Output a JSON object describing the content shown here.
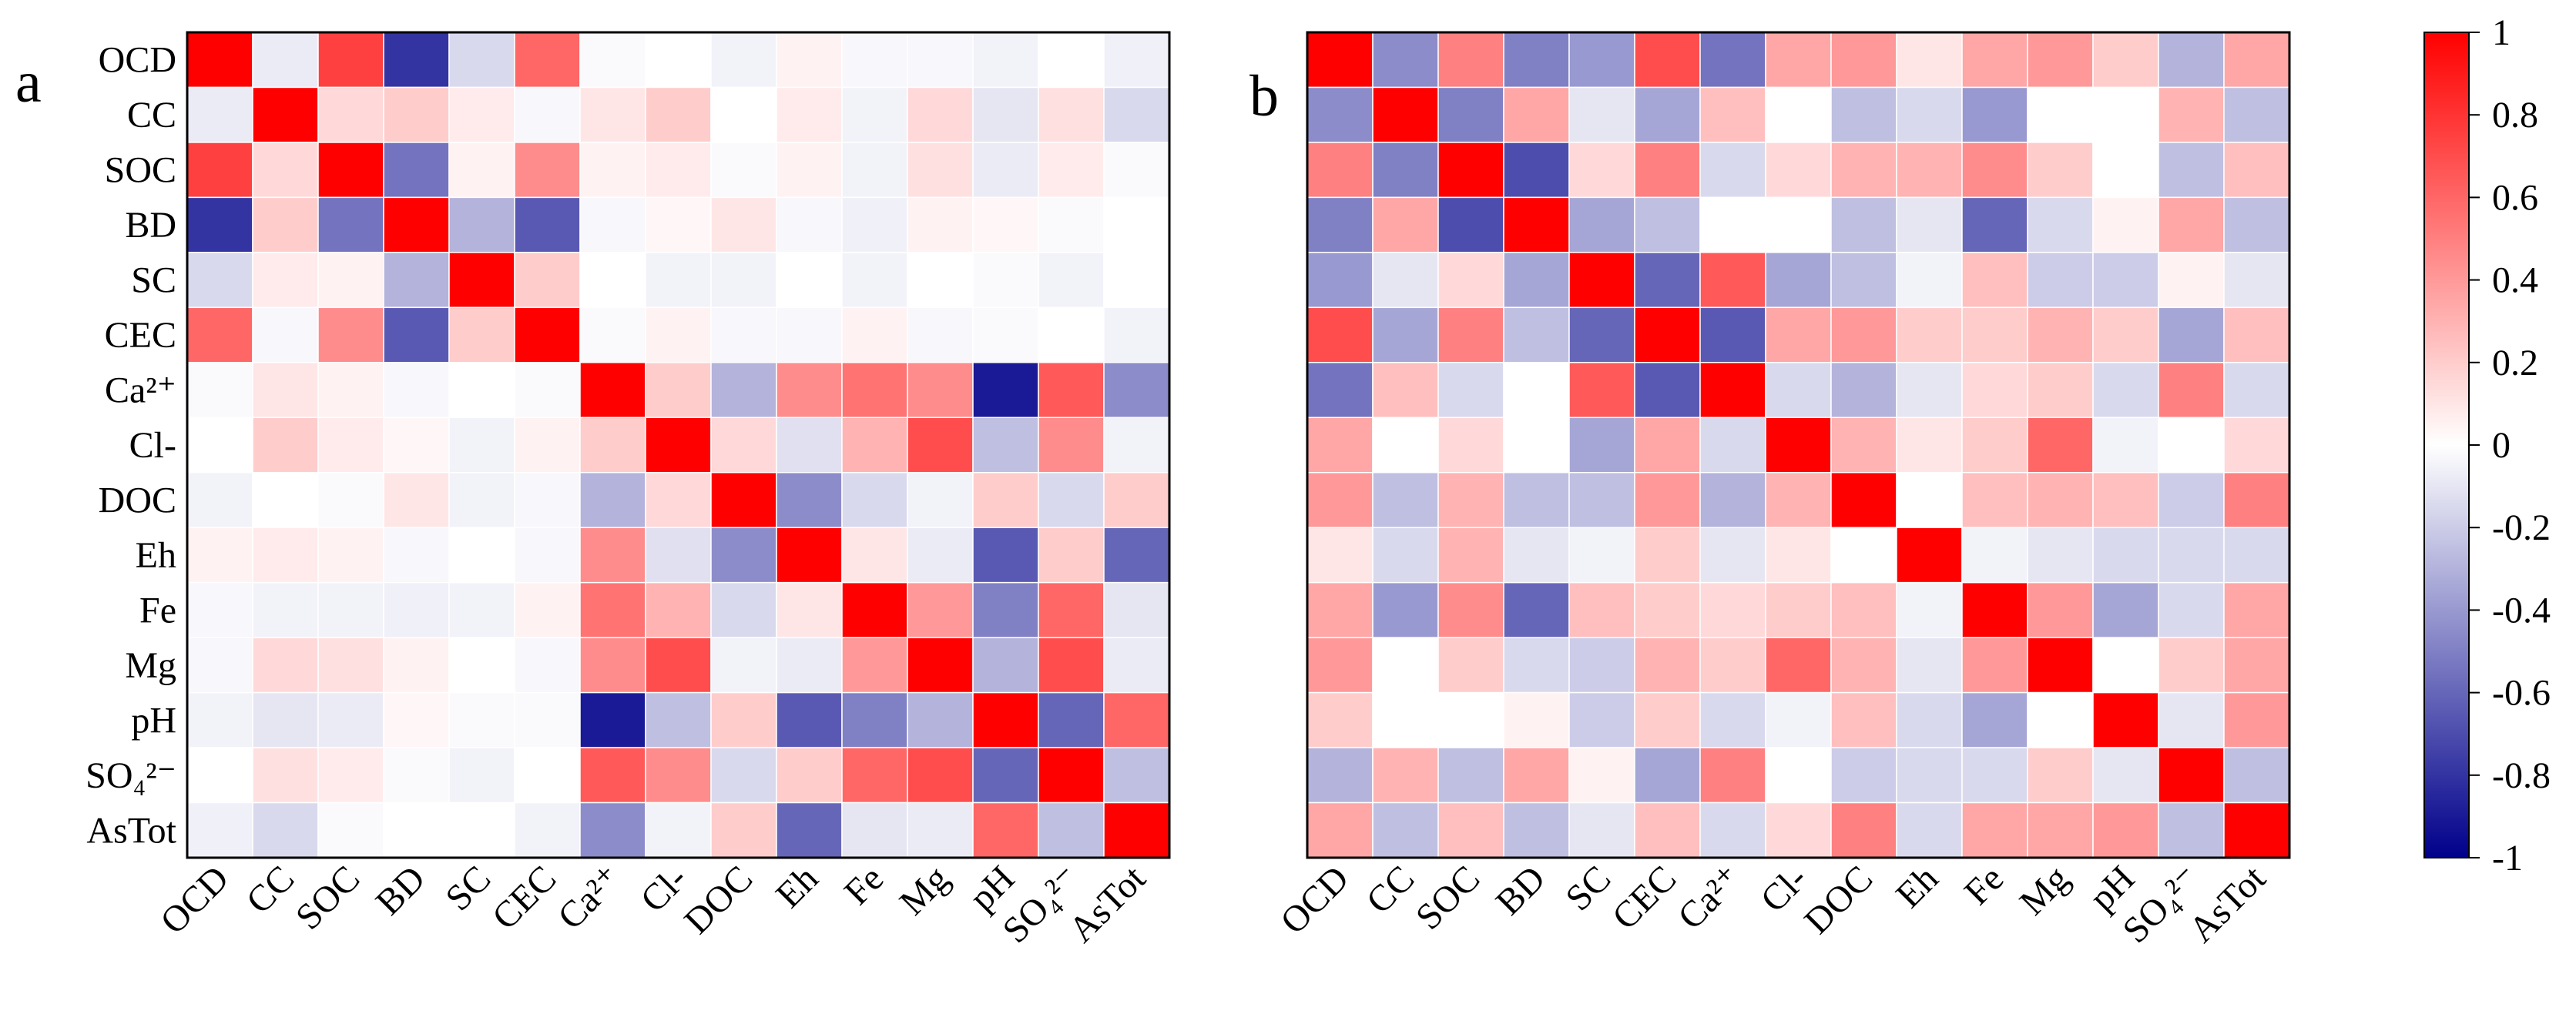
{
  "chart_data": [
    {
      "type": "heatmap",
      "panel_label": "a",
      "variables": [
        "OCD",
        "CC",
        "SOC",
        "BD",
        "SC",
        "CEC",
        "Ca²⁺",
        "Cl-",
        "DOC",
        "Eh",
        "Fe",
        "Mg",
        "pH",
        "SO₄²⁻",
        "AsTot"
      ],
      "matrix": [
        [
          1.0,
          -0.08,
          0.75,
          -0.8,
          -0.15,
          0.6,
          -0.02,
          0.0,
          -0.05,
          0.05,
          -0.03,
          -0.03,
          -0.05,
          0.0,
          -0.06
        ],
        [
          -0.08,
          1.0,
          0.15,
          0.2,
          0.08,
          -0.03,
          0.1,
          0.2,
          0.0,
          0.08,
          -0.05,
          0.15,
          -0.1,
          0.12,
          -0.15
        ],
        [
          0.75,
          0.15,
          1.0,
          -0.55,
          0.05,
          0.45,
          0.05,
          0.08,
          -0.02,
          0.05,
          -0.05,
          0.12,
          -0.08,
          0.08,
          -0.02
        ],
        [
          -0.8,
          0.2,
          -0.55,
          1.0,
          -0.3,
          -0.65,
          -0.03,
          0.03,
          0.1,
          -0.03,
          -0.06,
          0.05,
          0.03,
          -0.02,
          0.0
        ],
        [
          -0.15,
          0.08,
          0.05,
          -0.3,
          1.0,
          0.2,
          0.0,
          -0.05,
          -0.05,
          0.0,
          -0.05,
          0.0,
          -0.02,
          -0.05,
          0.0
        ],
        [
          0.6,
          -0.03,
          0.45,
          -0.65,
          0.2,
          1.0,
          -0.02,
          0.05,
          -0.03,
          -0.03,
          0.05,
          -0.03,
          -0.02,
          0.0,
          -0.05
        ],
        [
          -0.02,
          0.1,
          0.05,
          -0.03,
          0.0,
          -0.02,
          1.0,
          0.2,
          -0.3,
          0.45,
          0.55,
          0.45,
          -0.9,
          0.65,
          -0.45
        ],
        [
          0.0,
          0.2,
          0.08,
          0.03,
          -0.05,
          0.05,
          0.2,
          1.0,
          0.15,
          -0.12,
          0.3,
          0.7,
          -0.25,
          0.45,
          -0.05
        ],
        [
          -0.05,
          0.0,
          -0.02,
          0.1,
          -0.05,
          -0.03,
          -0.3,
          0.15,
          1.0,
          -0.45,
          -0.15,
          -0.05,
          0.2,
          -0.15,
          0.2
        ],
        [
          0.05,
          0.08,
          0.05,
          -0.03,
          0.0,
          -0.03,
          0.45,
          -0.12,
          -0.45,
          1.0,
          0.1,
          -0.08,
          -0.65,
          0.2,
          -0.6
        ],
        [
          -0.03,
          -0.05,
          -0.05,
          -0.06,
          -0.05,
          0.05,
          0.55,
          0.3,
          -0.15,
          0.1,
          1.0,
          0.4,
          -0.5,
          0.6,
          -0.1
        ],
        [
          -0.03,
          0.15,
          0.12,
          0.05,
          0.0,
          -0.03,
          0.45,
          0.7,
          -0.05,
          -0.08,
          0.4,
          1.0,
          -0.3,
          0.7,
          -0.08
        ],
        [
          -0.05,
          -0.1,
          -0.08,
          0.03,
          -0.02,
          -0.02,
          -0.9,
          -0.25,
          0.2,
          -0.65,
          -0.5,
          -0.3,
          1.0,
          -0.6,
          0.6
        ],
        [
          0.0,
          0.12,
          0.08,
          -0.02,
          -0.05,
          0.0,
          0.65,
          0.45,
          -0.15,
          0.2,
          0.6,
          0.7,
          -0.6,
          1.0,
          -0.25
        ],
        [
          -0.06,
          -0.15,
          -0.02,
          0.0,
          0.0,
          -0.05,
          -0.45,
          -0.05,
          0.2,
          -0.6,
          -0.1,
          -0.08,
          0.6,
          -0.25,
          1.0
        ]
      ]
    },
    {
      "type": "heatmap",
      "panel_label": "b",
      "variables": [
        "OCD",
        "CC",
        "SOC",
        "BD",
        "SC",
        "CEC",
        "Ca²⁺",
        "Cl-",
        "DOC",
        "Eh",
        "Fe",
        "Mg",
        "pH",
        "SO₄²⁻",
        "AsTot"
      ],
      "matrix": [
        [
          1.0,
          -0.45,
          0.5,
          -0.5,
          -0.4,
          0.7,
          -0.55,
          0.35,
          0.4,
          0.1,
          0.35,
          0.4,
          0.2,
          -0.3,
          0.35
        ],
        [
          -0.45,
          1.0,
          -0.5,
          0.35,
          -0.1,
          -0.35,
          0.25,
          0.0,
          -0.25,
          -0.15,
          -0.4,
          0.0,
          0.0,
          0.3,
          -0.25
        ],
        [
          0.5,
          -0.5,
          1.0,
          -0.7,
          0.15,
          0.5,
          -0.15,
          0.15,
          0.3,
          0.3,
          0.45,
          0.2,
          0.0,
          -0.25,
          0.25
        ],
        [
          -0.5,
          0.35,
          -0.7,
          1.0,
          -0.35,
          -0.25,
          0.0,
          0.0,
          -0.25,
          -0.1,
          -0.6,
          -0.15,
          0.05,
          0.35,
          -0.25
        ],
        [
          -0.4,
          -0.1,
          0.15,
          -0.35,
          1.0,
          -0.6,
          0.65,
          -0.35,
          -0.25,
          -0.05,
          0.25,
          -0.2,
          -0.2,
          0.05,
          -0.1
        ],
        [
          0.7,
          -0.35,
          0.5,
          -0.25,
          -0.6,
          1.0,
          -0.65,
          0.35,
          0.4,
          0.2,
          0.2,
          0.3,
          0.2,
          -0.35,
          0.25
        ],
        [
          -0.55,
          0.25,
          -0.15,
          0.0,
          0.65,
          -0.65,
          1.0,
          -0.15,
          -0.3,
          -0.1,
          0.15,
          0.2,
          -0.15,
          0.5,
          -0.15
        ],
        [
          0.35,
          0.0,
          0.15,
          0.0,
          -0.35,
          0.35,
          -0.15,
          1.0,
          0.3,
          0.1,
          0.2,
          0.6,
          -0.05,
          0.0,
          0.15
        ],
        [
          0.4,
          -0.25,
          0.3,
          -0.25,
          -0.25,
          0.4,
          -0.3,
          0.3,
          1.0,
          0.0,
          0.25,
          0.3,
          0.25,
          -0.2,
          0.5
        ],
        [
          0.1,
          -0.15,
          0.3,
          -0.1,
          -0.05,
          0.2,
          -0.1,
          0.1,
          0.0,
          1.0,
          -0.05,
          -0.1,
          -0.15,
          -0.15,
          -0.15
        ],
        [
          0.35,
          -0.4,
          0.45,
          -0.6,
          0.25,
          0.2,
          0.15,
          0.2,
          0.25,
          -0.05,
          1.0,
          0.4,
          -0.35,
          -0.15,
          0.35
        ],
        [
          0.4,
          0.0,
          0.2,
          -0.15,
          -0.2,
          0.3,
          0.2,
          0.6,
          0.3,
          -0.1,
          0.4,
          1.0,
          0.0,
          0.2,
          0.35
        ],
        [
          0.2,
          0.0,
          0.0,
          0.05,
          -0.2,
          0.2,
          -0.15,
          -0.05,
          0.25,
          -0.15,
          -0.35,
          0.0,
          1.0,
          -0.1,
          0.4
        ],
        [
          -0.3,
          0.3,
          -0.25,
          0.35,
          0.05,
          -0.35,
          0.5,
          0.0,
          -0.2,
          -0.15,
          -0.15,
          0.2,
          -0.1,
          1.0,
          -0.25
        ],
        [
          0.35,
          -0.25,
          0.25,
          -0.25,
          -0.1,
          0.25,
          -0.15,
          0.15,
          0.5,
          -0.15,
          0.35,
          0.35,
          0.4,
          -0.25,
          1.0
        ]
      ]
    }
  ],
  "colorbar": {
    "range": [
      -1,
      1
    ],
    "ticks": [
      1,
      0.8,
      0.6,
      0.4,
      0.2,
      0,
      -0.2,
      -0.4,
      -0.6,
      -0.8,
      -1
    ],
    "tick_labels": [
      "1",
      "0.8",
      "0.6",
      "0.4",
      "0.2",
      "0",
      "-0.2",
      "-0.4",
      "-0.6",
      "-0.8",
      "-1"
    ],
    "colors": {
      "low": "#00008b",
      "mid": "#ffffff",
      "high": "#ff0000"
    }
  }
}
